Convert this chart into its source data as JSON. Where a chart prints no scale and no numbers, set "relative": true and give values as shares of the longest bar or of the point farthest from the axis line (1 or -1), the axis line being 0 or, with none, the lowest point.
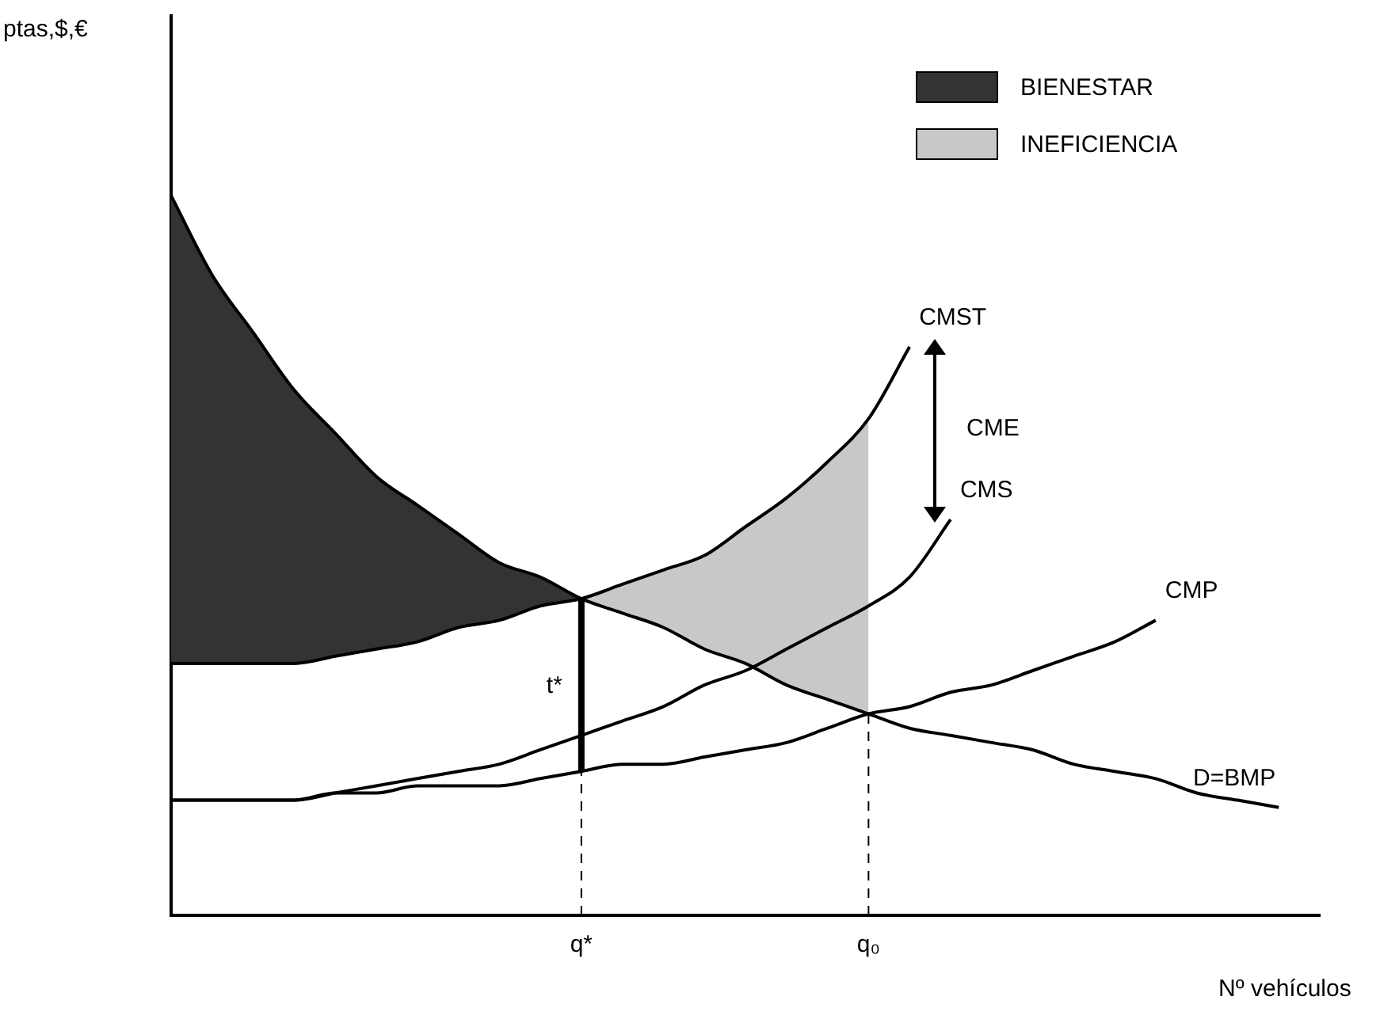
{
  "chart_data": {
    "type": "line",
    "relative": true,
    "xlabel": "Nº vehículos",
    "marker": "none",
    "line_style": "solid",
    "grid": false,
    "legend": "top right",
    "categories": [
      null,
      null,
      null,
      null,
      null,
      null,
      null,
      null,
      null,
      null,
      "q*",
      null,
      null,
      null,
      null,
      null,
      null,
      "q₀",
      null,
      null,
      null,
      null,
      null,
      null,
      null,
      null,
      null,
      null,
      null
    ],
    "series": [
      {
        "name": "D=BMP",
        "color": "#000000",
        "values": [
          1,
          0.89,
          0.81,
          0.73,
          0.67,
          0.61,
          0.57,
          0.53,
          0.49,
          0.47,
          0.44,
          0.42,
          0.4,
          0.37,
          0.35,
          0.32,
          0.3,
          0.28,
          0.26,
          0.25,
          0.24,
          0.23,
          0.21,
          0.2,
          0.19,
          0.17,
          0.16,
          0.15,
          null
        ]
      },
      {
        "name": "CMST",
        "color": "#000000",
        "values": [
          0.35,
          0.35,
          0.35,
          0.35,
          0.36,
          0.37,
          0.38,
          0.4,
          0.41,
          0.43,
          0.44,
          0.46,
          0.48,
          0.5,
          0.54,
          0.58,
          0.63,
          0.69,
          0.79,
          null,
          null,
          null,
          null,
          null,
          null,
          null,
          null,
          null,
          null
        ]
      },
      {
        "name": "CMS",
        "color": "#000000",
        "values": [
          0.16,
          0.16,
          0.16,
          0.16,
          0.17,
          0.18,
          0.19,
          0.2,
          0.21,
          0.23,
          0.25,
          0.27,
          0.29,
          0.32,
          0.34,
          0.37,
          0.4,
          0.43,
          0.47,
          0.55,
          null,
          null,
          null,
          null,
          null,
          null,
          null,
          null,
          null
        ]
      },
      {
        "name": "CMP",
        "color": "#000000",
        "values": [
          0.16,
          0.16,
          0.16,
          0.16,
          0.17,
          0.17,
          0.18,
          0.18,
          0.18,
          0.19,
          0.2,
          0.21,
          0.21,
          0.22,
          0.23,
          0.24,
          0.26,
          0.28,
          0.29,
          0.31,
          0.32,
          0.34,
          0.36,
          0.38,
          0.41,
          null,
          null,
          null,
          null
        ]
      },
      {
        "name": "BIENESTAR",
        "type": "area",
        "color": "#333333",
        "values": [
          1,
          0.89,
          0.81,
          0.73,
          0.67,
          0.61,
          0.57,
          0.53,
          0.49,
          0.47,
          0.44,
          null,
          null,
          null,
          null,
          null,
          null,
          null,
          null,
          null,
          null,
          null,
          null,
          null,
          null,
          null,
          null,
          null,
          null
        ]
      },
      {
        "name": "INEFICIENCIA",
        "type": "area",
        "color": "#c8c8c8",
        "values": [
          null,
          null,
          null,
          null,
          null,
          null,
          null,
          null,
          null,
          null,
          0.44,
          0.46,
          0.48,
          0.5,
          0.54,
          0.58,
          0.63,
          0.69,
          null,
          null,
          null,
          null,
          null,
          null,
          null,
          null,
          null,
          null,
          null
        ]
      }
    ],
    "ref_lines": [
      {
        "axis": "x",
        "value": "q*",
        "line_style": "dashed"
      },
      {
        "axis": "x",
        "value": "q₀",
        "line_style": "dashed"
      },
      {
        "axis": "x",
        "value": "q*",
        "line_style": "solid",
        "label": "t*",
        "color": "#000000"
      }
    ],
    "annotations": [
      "CME",
      "ptas,$,€"
    ]
  }
}
